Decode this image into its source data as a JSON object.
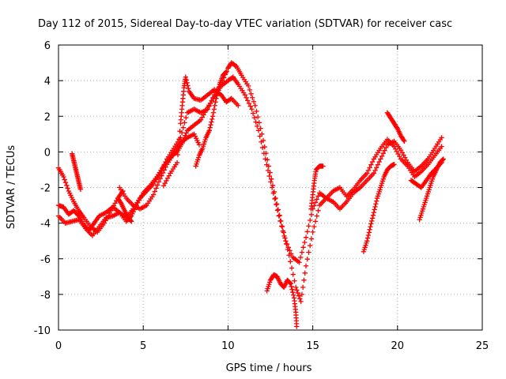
{
  "chart_data": {
    "type": "scatter",
    "title": "Day 112 of 2015, Sidereal Day-to-day VTEC variation (SDTVAR) for receiver casc",
    "xlabel": "GPS time / hours",
    "ylabel": "SDTVAR / TECUs",
    "xlim": [
      0,
      25
    ],
    "ylim": [
      -10,
      6
    ],
    "xticks": [
      0,
      5,
      10,
      15,
      20,
      25
    ],
    "yticks": [
      -10,
      -8,
      -6,
      -4,
      -2,
      0,
      2,
      4,
      6
    ],
    "grid": true,
    "marker": "+",
    "color": "#ff0000",
    "series": [
      {
        "points": [
          [
            0.0,
            -3.0
          ],
          [
            0.3,
            -3.1
          ],
          [
            0.6,
            -3.5
          ],
          [
            0.9,
            -3.3
          ],
          [
            1.2,
            -3.6
          ],
          [
            1.5,
            -4.1
          ],
          [
            1.8,
            -4.4
          ],
          [
            2.1,
            -4.0
          ],
          [
            2.4,
            -3.6
          ],
          [
            2.8,
            -3.4
          ],
          [
            3.2,
            -3.1
          ],
          [
            3.6,
            -3.4
          ],
          [
            4.0,
            -3.9
          ],
          [
            4.3,
            -3.6
          ],
          [
            4.6,
            -3.0
          ],
          [
            5.0,
            -2.3
          ],
          [
            5.4,
            -1.9
          ],
          [
            5.8,
            -1.4
          ],
          [
            6.2,
            -0.8
          ],
          [
            6.6,
            -0.3
          ],
          [
            7.0,
            0.0
          ],
          [
            7.3,
            0.5
          ],
          [
            7.6,
            1.2
          ],
          [
            8.0,
            1.5
          ],
          [
            8.4,
            1.8
          ],
          [
            8.8,
            2.5
          ],
          [
            9.2,
            3.1
          ],
          [
            9.6,
            3.7
          ],
          [
            10.0,
            4.0
          ],
          [
            10.3,
            4.2
          ],
          [
            10.6,
            3.8
          ],
          [
            11.0,
            3.2
          ],
          [
            11.4,
            2.4
          ],
          [
            11.8,
            1.2
          ],
          [
            12.2,
            -0.4
          ],
          [
            12.6,
            -2.0
          ],
          [
            13.0,
            -3.6
          ],
          [
            13.4,
            -5.0
          ],
          [
            13.8,
            -5.9
          ],
          [
            14.2,
            -6.2
          ],
          [
            14.6,
            -4.8
          ],
          [
            15.0,
            -3.2
          ],
          [
            15.4,
            -2.3
          ],
          [
            15.8,
            -2.6
          ],
          [
            16.2,
            -2.8
          ],
          [
            16.6,
            -3.2
          ],
          [
            17.0,
            -2.8
          ],
          [
            17.4,
            -2.3
          ],
          [
            17.8,
            -2.0
          ],
          [
            18.2,
            -1.6
          ],
          [
            18.6,
            -1.2
          ],
          [
            19.0,
            -0.4
          ],
          [
            19.4,
            0.4
          ],
          [
            19.8,
            0.6
          ],
          [
            20.2,
            0.1
          ],
          [
            20.6,
            -0.6
          ],
          [
            21.0,
            -1.1
          ],
          [
            21.4,
            -0.8
          ],
          [
            21.8,
            -0.4
          ],
          [
            22.2,
            0.2
          ],
          [
            22.6,
            0.8
          ]
        ]
      },
      {
        "points": [
          [
            0.0,
            -3.6
          ],
          [
            0.4,
            -4.0
          ],
          [
            0.8,
            -3.9
          ],
          [
            1.2,
            -3.8
          ],
          [
            1.6,
            -4.3
          ],
          [
            2.0,
            -4.7
          ],
          [
            2.4,
            -4.2
          ],
          [
            2.8,
            -3.7
          ],
          [
            3.2,
            -3.6
          ],
          [
            3.6,
            -3.4
          ],
          [
            4.0,
            -3.7
          ],
          [
            4.4,
            -3.2
          ],
          [
            4.8,
            -2.6
          ],
          [
            5.2,
            -2.2
          ],
          [
            5.6,
            -1.8
          ],
          [
            6.0,
            -1.2
          ],
          [
            6.4,
            -0.4
          ],
          [
            6.8,
            0.2
          ],
          [
            7.2,
            0.8
          ],
          [
            7.6,
            2.2
          ],
          [
            8.0,
            2.4
          ],
          [
            8.4,
            2.2
          ],
          [
            8.8,
            2.4
          ],
          [
            9.2,
            3.2
          ],
          [
            9.6,
            3.8
          ],
          [
            10.0,
            4.7
          ],
          [
            10.2,
            5.0
          ],
          [
            10.5,
            4.8
          ],
          [
            10.8,
            4.3
          ],
          [
            11.2,
            3.7
          ],
          [
            11.6,
            2.6
          ],
          [
            12.0,
            1.0
          ],
          [
            12.4,
            -0.8
          ],
          [
            12.8,
            -2.6
          ],
          [
            13.2,
            -4.2
          ],
          [
            13.6,
            -5.8
          ],
          [
            14.0,
            -7.6
          ],
          [
            14.3,
            -8.4
          ],
          [
            14.6,
            -6.4
          ],
          [
            15.0,
            -4.5
          ],
          [
            15.4,
            -3.0
          ],
          [
            15.8,
            -2.6
          ],
          [
            16.2,
            -2.2
          ],
          [
            16.6,
            -2.0
          ],
          [
            17.0,
            -2.5
          ],
          [
            17.4,
            -2.1
          ],
          [
            17.8,
            -1.6
          ],
          [
            18.2,
            -1.2
          ],
          [
            18.6,
            -0.4
          ],
          [
            19.0,
            0.2
          ],
          [
            19.4,
            0.7
          ],
          [
            19.8,
            0.3
          ],
          [
            20.2,
            -0.4
          ],
          [
            20.6,
            -0.8
          ],
          [
            21.0,
            -1.4
          ],
          [
            21.4,
            -1.1
          ],
          [
            21.8,
            -0.7
          ],
          [
            22.2,
            -0.2
          ],
          [
            22.6,
            0.3
          ]
        ]
      },
      {
        "points": [
          [
            0.0,
            -0.9
          ],
          [
            0.3,
            -1.4
          ],
          [
            0.6,
            -2.2
          ],
          [
            0.9,
            -2.8
          ],
          [
            1.2,
            -3.3
          ],
          [
            1.5,
            -3.7
          ],
          [
            1.9,
            -4.2
          ],
          [
            2.3,
            -4.5
          ],
          [
            2.7,
            -4.0
          ],
          [
            3.1,
            -3.3
          ],
          [
            3.5,
            -2.6
          ],
          [
            3.8,
            -2.2
          ]
        ]
      },
      {
        "points": [
          [
            0.8,
            -0.1
          ],
          [
            0.9,
            -0.5
          ],
          [
            1.0,
            -0.9
          ],
          [
            1.1,
            -1.3
          ],
          [
            1.2,
            -1.7
          ],
          [
            1.3,
            -2.1
          ]
        ]
      },
      {
        "points": [
          [
            3.6,
            -2.0
          ],
          [
            4.0,
            -2.6
          ],
          [
            4.4,
            -3.0
          ],
          [
            4.8,
            -3.2
          ],
          [
            5.2,
            -3.0
          ],
          [
            5.6,
            -2.4
          ],
          [
            6.0,
            -1.5
          ],
          [
            6.4,
            -0.7
          ],
          [
            6.8,
            -0.1
          ],
          [
            7.2,
            0.5
          ],
          [
            7.6,
            0.8
          ],
          [
            8.0,
            1.0
          ],
          [
            8.3,
            0.4
          ]
        ]
      },
      {
        "points": [
          [
            3.5,
            -2.6
          ],
          [
            3.7,
            -2.9
          ],
          [
            3.9,
            -3.3
          ],
          [
            4.1,
            -3.7
          ],
          [
            4.3,
            -3.9
          ]
        ]
      },
      {
        "points": [
          [
            6.2,
            -1.9
          ],
          [
            6.6,
            -1.2
          ],
          [
            7.0,
            -0.6
          ],
          [
            7.2,
            1.6
          ],
          [
            7.3,
            2.6
          ],
          [
            7.4,
            3.6
          ],
          [
            7.5,
            4.2
          ],
          [
            7.7,
            3.4
          ],
          [
            8.0,
            3.0
          ],
          [
            8.4,
            2.9
          ],
          [
            8.8,
            3.2
          ],
          [
            9.2,
            3.5
          ],
          [
            9.6,
            3.2
          ],
          [
            9.9,
            2.8
          ],
          [
            10.2,
            3.0
          ],
          [
            10.6,
            2.6
          ]
        ]
      },
      {
        "points": [
          [
            8.1,
            -0.8
          ],
          [
            8.3,
            -0.2
          ],
          [
            8.5,
            0.2
          ],
          [
            8.7,
            0.8
          ],
          [
            8.9,
            1.2
          ],
          [
            9.1,
            2.0
          ],
          [
            9.3,
            3.0
          ],
          [
            9.5,
            3.8
          ],
          [
            9.7,
            4.3
          ],
          [
            9.9,
            4.5
          ]
        ]
      },
      {
        "points": [
          [
            12.3,
            -7.8
          ],
          [
            12.5,
            -7.2
          ],
          [
            12.7,
            -6.9
          ],
          [
            12.9,
            -7.0
          ],
          [
            13.1,
            -7.4
          ],
          [
            13.3,
            -7.6
          ],
          [
            13.5,
            -7.2
          ],
          [
            13.7,
            -7.4
          ],
          [
            13.9,
            -8.2
          ],
          [
            14.0,
            -9.0
          ],
          [
            14.05,
            -9.8
          ]
        ]
      },
      {
        "points": [
          [
            14.9,
            -3.2
          ],
          [
            15.0,
            -2.4
          ],
          [
            15.1,
            -1.6
          ],
          [
            15.2,
            -1.0
          ],
          [
            15.4,
            -0.8
          ],
          [
            15.6,
            -0.8
          ]
        ]
      },
      {
        "points": [
          [
            18.0,
            -5.6
          ],
          [
            18.2,
            -5.0
          ],
          [
            18.4,
            -4.2
          ],
          [
            18.6,
            -3.4
          ],
          [
            18.8,
            -2.6
          ],
          [
            19.0,
            -2.0
          ],
          [
            19.2,
            -1.4
          ],
          [
            19.4,
            -1.0
          ],
          [
            19.6,
            -0.8
          ],
          [
            19.8,
            -0.7
          ]
        ]
      },
      {
        "points": [
          [
            19.4,
            2.2
          ],
          [
            19.6,
            1.9
          ],
          [
            19.8,
            1.6
          ],
          [
            20.0,
            1.3
          ],
          [
            20.2,
            0.9
          ],
          [
            20.4,
            0.6
          ]
        ]
      },
      {
        "points": [
          [
            21.3,
            -3.8
          ],
          [
            21.5,
            -3.2
          ],
          [
            21.7,
            -2.6
          ],
          [
            21.9,
            -2.0
          ],
          [
            22.1,
            -1.4
          ],
          [
            22.3,
            -1.0
          ],
          [
            22.5,
            -0.6
          ],
          [
            22.7,
            -0.4
          ]
        ]
      },
      {
        "points": [
          [
            20.8,
            -1.6
          ],
          [
            21.1,
            -1.8
          ],
          [
            21.4,
            -2.0
          ],
          [
            21.7,
            -1.6
          ],
          [
            22.0,
            -1.2
          ],
          [
            22.3,
            -0.9
          ],
          [
            22.6,
            -0.6
          ]
        ]
      }
    ]
  }
}
